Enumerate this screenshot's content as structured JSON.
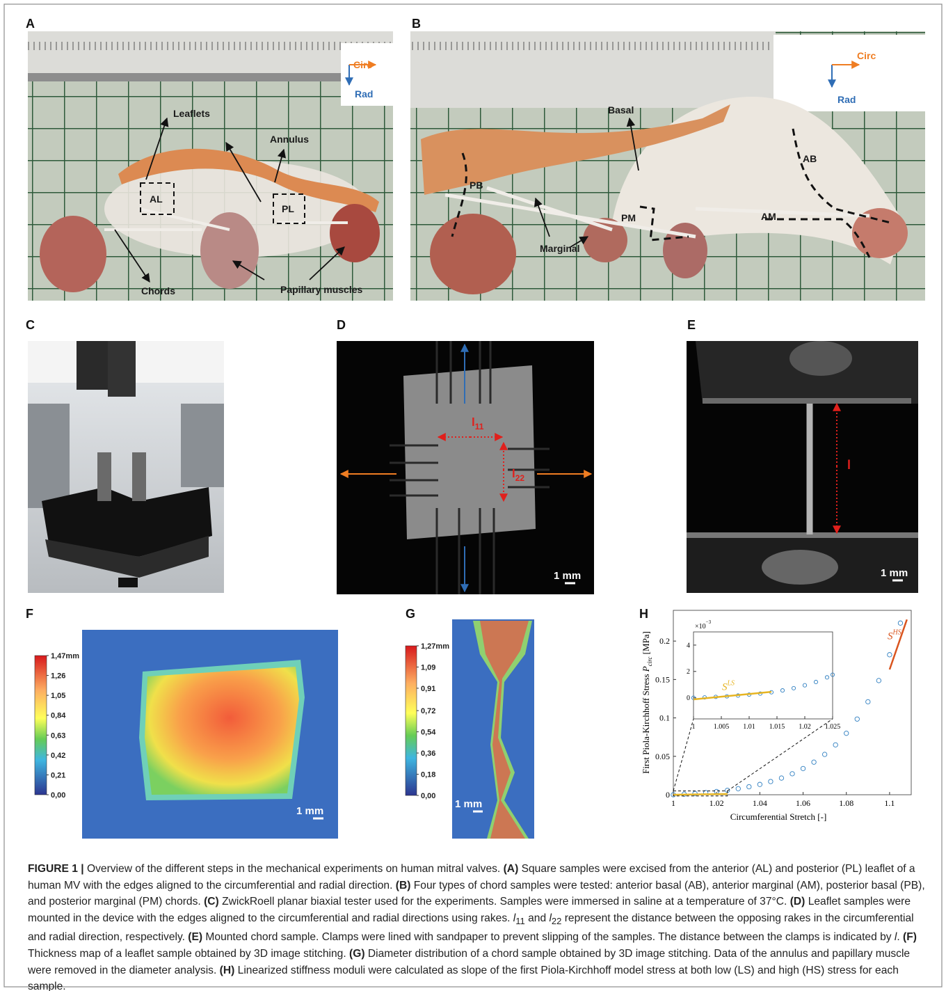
{
  "panels": [
    {
      "label": "A",
      "circ": "Circ",
      "rad": "Rad",
      "leaflets": "Leaflets",
      "annulus": "Annulus",
      "al": "AL",
      "pl": "PL",
      "chords": "Chords",
      "papillary": "Papillary muscles"
    },
    {
      "label": "B",
      "circ": "Circ",
      "rad": "Rad",
      "basal": "Basal",
      "ab": "AB",
      "pb": "PB",
      "pm": "PM",
      "am": "AM",
      "marginal": "Marginal"
    },
    {
      "label": "C"
    },
    {
      "label": "D",
      "l11": {
        "base": "l",
        "sub": "11"
      },
      "l22": {
        "base": "l",
        "sub": "22"
      },
      "scale_bar": "1 mm"
    },
    {
      "label": "E",
      "length": "l",
      "scale_bar": "1 mm"
    },
    {
      "label": "F",
      "scale_bar": "1 mm",
      "colorbar_range": [
        0,
        1.47
      ],
      "colorbar_ticks": [
        {
          "value": 1.47,
          "label": "1,47mm"
        },
        {
          "value": 1.26,
          "label": "1,26"
        },
        {
          "value": 1.05,
          "label": "1,05"
        },
        {
          "value": 0.84,
          "label": "0,84"
        },
        {
          "value": 0.63,
          "label": "0,63"
        },
        {
          "value": 0.42,
          "label": "0,42"
        },
        {
          "value": 0.21,
          "label": "0,21"
        },
        {
          "value": 0,
          "label": "0,00"
        }
      ]
    },
    {
      "label": "G",
      "scale_bar": "1 mm",
      "colorbar_range": [
        0,
        1.27
      ],
      "colorbar_ticks": [
        {
          "value": 1.27,
          "label": "1,27mm"
        },
        {
          "value": 1.09,
          "label": "1,09"
        },
        {
          "value": 0.91,
          "label": "0,91"
        },
        {
          "value": 0.72,
          "label": "0,72"
        },
        {
          "value": 0.54,
          "label": "0,54"
        },
        {
          "value": 0.36,
          "label": "0,36"
        },
        {
          "value": 0.18,
          "label": "0,18"
        },
        {
          "value": 0,
          "label": "0,00"
        }
      ]
    },
    {
      "label": "H"
    }
  ],
  "chart_data": [
    {
      "type": "scatter",
      "xlabel": "Circumferential Stretch [-]",
      "ylabel": [
        {
          "text": "First Piola-Kirchhoff Stress "
        },
        {
          "text": "P",
          "style": "italic"
        },
        {
          "text": "circ",
          "style": "sub"
        },
        {
          "text": " [MPa]"
        }
      ],
      "xlim": [
        1,
        1.11
      ],
      "xticks": [
        1,
        1.02,
        1.04,
        1.06,
        1.08,
        1.1
      ],
      "ylim": [
        0,
        0.24
      ],
      "yticks": [
        0,
        0.05,
        0.1,
        0.15,
        0.2
      ],
      "zoom_box": {
        "x": [
          1,
          1.025
        ],
        "y": [
          -0.0016,
          0.005
        ]
      },
      "series": [
        {
          "kind": "points",
          "color": "#2f7fc1",
          "x": [
            1,
            1.005,
            1.01,
            1.015,
            1.02,
            1.025,
            1.03,
            1.035,
            1.04,
            1.045,
            1.05,
            1.055,
            1.06,
            1.065,
            1.07,
            1.075,
            1.08,
            1.085,
            1.09,
            1.095,
            1.1,
            1.105
          ],
          "values": [
            0,
            0.00075,
            0.00167,
            0.0028,
            0.0042,
            0.0058,
            0.0079,
            0.0104,
            0.0134,
            0.0172,
            0.0217,
            0.0273,
            0.0341,
            0.0424,
            0.0525,
            0.0649,
            0.08,
            0.0985,
            0.121,
            0.1486,
            0.1822,
            0.2234
          ]
        },
        {
          "kind": "line",
          "color": "#e6b422",
          "x": [
            1,
            1.025
          ],
          "values": [
            0,
            0.001
          ]
        },
        {
          "kind": "line",
          "color": "#d9541e",
          "x": [
            1.1,
            1.108
          ],
          "values": [
            0.163,
            0.228
          ],
          "label": {
            "base": "S",
            "sup": "HS"
          }
        }
      ]
    },
    {
      "type": "scatter",
      "y_exponent": {
        "base": "×10",
        "sup": "−3"
      },
      "xlim": [
        1,
        1.025
      ],
      "xticks": [
        1,
        1.005,
        1.01,
        1.015,
        1.02,
        1.025
      ],
      "ylim": [
        -1.6,
        5
      ],
      "yticks": [
        0,
        2,
        4
      ],
      "series": [
        {
          "kind": "points",
          "color": "#2f7fc1",
          "x": [
            1,
            1.002,
            1.004,
            1.006,
            1.008,
            1.01,
            1.012,
            1.014,
            1.016,
            1.018,
            1.02,
            1.022,
            1.024,
            1.025
          ],
          "values": [
            0,
            0.03,
            0.07,
            0.11,
            0.17,
            0.24,
            0.32,
            0.42,
            0.56,
            0.73,
            0.95,
            1.2,
            1.55,
            1.75
          ]
        },
        {
          "kind": "line",
          "color": "#e6b422",
          "x": [
            1,
            1.014
          ],
          "values": [
            -0.12,
            0.45
          ],
          "label": {
            "base": "S",
            "sup": "LS"
          }
        }
      ]
    }
  ],
  "caption": {
    "figure": "FIGURE 1 |",
    "intro": "Overview of the different steps in the mechanical experiments on human mitral valves.",
    "parts": [
      {
        "label": "(A)",
        "runs": [
          {
            "text": "Square samples were excised from the anterior (AL) and posterior (PL) leaflet of a human MV with the edges aligned to the circumferential and radial direction."
          }
        ]
      },
      {
        "label": "(B)",
        "runs": [
          {
            "text": "Four types of chord samples were tested: anterior basal (AB), anterior marginal (AM), posterior basal (PB), and posterior marginal (PM) chords."
          }
        ]
      },
      {
        "label": "(C)",
        "runs": [
          {
            "text": "ZwickRoell planar biaxial tester used for the experiments. Samples were immersed in saline at a temperature of 37°C."
          }
        ]
      },
      {
        "label": "(D)",
        "runs": [
          {
            "text": "Leaflet samples were mounted in the device with the edges aligned to the circumferential and radial directions using rakes. "
          },
          {
            "text": "l",
            "style": "italic"
          },
          {
            "text": "11",
            "style": "sub"
          },
          {
            "text": " and "
          },
          {
            "text": "l",
            "style": "italic"
          },
          {
            "text": "22",
            "style": "sub"
          },
          {
            "text": " represent the distance between the opposing rakes in the circumferential and radial direction, respectively."
          }
        ]
      },
      {
        "label": "(E)",
        "runs": [
          {
            "text": "Mounted chord sample. Clamps were lined with sandpaper to prevent slipping of the samples.  The distance between the clamps is indicated by "
          },
          {
            "text": "l",
            "style": "italic"
          },
          {
            "text": "."
          }
        ]
      },
      {
        "label": "(F)",
        "runs": [
          {
            "text": "Thickness map of a leaflet sample obtained by 3D image stitching."
          }
        ]
      },
      {
        "label": "(G)",
        "runs": [
          {
            "text": "Diameter distribution of a chord sample obtained by 3D image stitching. Data of the annulus and papillary muscle were removed in the diameter analysis."
          }
        ]
      },
      {
        "label": "(H)",
        "runs": [
          {
            "text": "Linearized stiffness moduli were calculated as slope of the first Piola-Kirchhoff model stress at both low (LS) and high (HS) stress for each sample."
          }
        ]
      }
    ]
  }
}
